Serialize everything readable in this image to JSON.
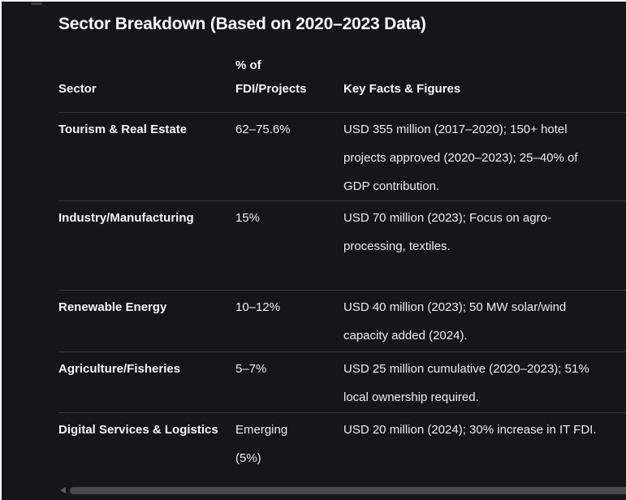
{
  "title": "Sector Breakdown (Based on 2020–2023 Data)",
  "table": {
    "headers": {
      "sector": "Sector",
      "share_line1": "% of",
      "share_line2": "FDI/Projects",
      "facts": "Key Facts & Figures"
    },
    "rows": [
      {
        "sector": "Tourism & Real Estate",
        "share": "62–75.6%",
        "facts": "USD 355 million (2017–2020); 150+ hotel projects approved (2020–2023); 25–40% of GDP contribution."
      },
      {
        "sector": "Industry/Manufacturing",
        "share": "15%",
        "facts": "USD 70 million (2023); Focus on agro-processing, textiles."
      },
      {
        "sector": "Renewable Energy",
        "share": "10–12%",
        "facts": "USD 40 million (2023); 50 MW solar/wind capacity added (2024)."
      },
      {
        "sector": "Agriculture/Fisheries",
        "share": "5–7%",
        "facts": "USD 25 million cumulative (2020–2023); 51% local ownership required."
      },
      {
        "sector": "Digital Services & Logistics",
        "share": "Emerging (5%)",
        "facts": "USD 20 million (2024); 30% increase in IT FDI."
      }
    ]
  },
  "scrollbar": {
    "orientation": "horizontal",
    "left_arrow_icon": "scroll-left-arrow-icon"
  },
  "colors": {
    "background": "#161618",
    "text": "#f0f0f0",
    "divider": "#38383c",
    "scrollbar_thumb": "#49494d"
  }
}
